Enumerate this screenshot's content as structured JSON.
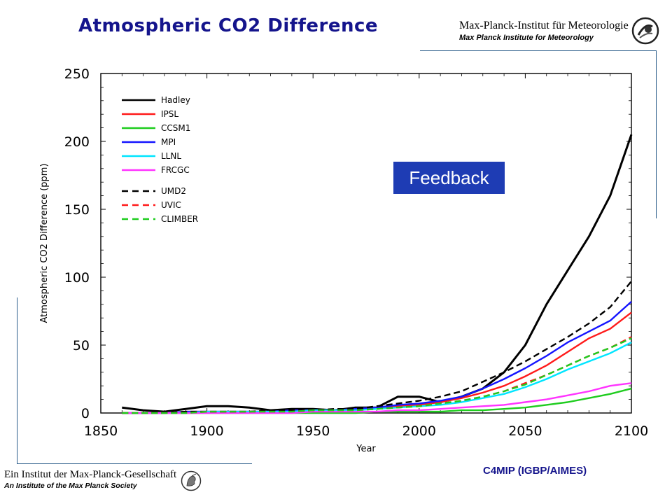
{
  "slide": {
    "title": "Atmospheric CO2 Difference",
    "institute_name": "Max-Planck-Institut für Meteorologie",
    "institute_name_en": "Max Planck Institute for Meteorology",
    "footer_society": "Ein Institut der Max-Planck-Gesellschaft",
    "footer_society_en": "An Institute of the Max Planck Society",
    "footer_project": "C4MIP (IGBP/AIMES)",
    "badge": "Feedback",
    "colors": {
      "title": "#14148c",
      "badge_bg": "#1e3cb4",
      "frame": "#2b5d8a"
    }
  },
  "chart_data": {
    "type": "line",
    "title": "",
    "xlabel": "Year",
    "ylabel": "Atmospheric CO2 Difference (ppm)",
    "xlim": [
      1850,
      2100
    ],
    "ylim": [
      0,
      250
    ],
    "xticks": [
      1850,
      1900,
      1950,
      2000,
      2050,
      2100
    ],
    "yticks": [
      0,
      50,
      100,
      150,
      200,
      250
    ],
    "grid": false,
    "legend_position": "top-left",
    "x": [
      1860,
      1870,
      1880,
      1890,
      1900,
      1910,
      1920,
      1930,
      1940,
      1950,
      1960,
      1970,
      1980,
      1990,
      2000,
      2010,
      2020,
      2030,
      2040,
      2050,
      2060,
      2070,
      2080,
      2090,
      2100
    ],
    "series": [
      {
        "name": "Hadley",
        "color": "#000000",
        "dash": "solid",
        "values": [
          4,
          2,
          1,
          3,
          5,
          5,
          4,
          2,
          3,
          3,
          2,
          4,
          4,
          12,
          12,
          8,
          12,
          18,
          30,
          50,
          80,
          105,
          130,
          160,
          205
        ]
      },
      {
        "name": "IPSL",
        "color": "#ff1a1a",
        "dash": "solid",
        "values": [
          0,
          0,
          0,
          1,
          1,
          1,
          1,
          1,
          2,
          2,
          2,
          3,
          4,
          5,
          6,
          8,
          11,
          15,
          20,
          27,
          35,
          45,
          55,
          62,
          74
        ]
      },
      {
        "name": "CCSM1",
        "color": "#1ecc1e",
        "dash": "solid",
        "values": [
          0,
          0,
          0,
          0,
          0,
          0,
          0,
          0,
          0,
          0,
          0,
          0,
          1,
          1,
          1,
          1,
          2,
          2,
          3,
          4,
          6,
          8,
          11,
          14,
          18
        ]
      },
      {
        "name": "MPI",
        "color": "#1414ff",
        "dash": "solid",
        "values": [
          0,
          0,
          0,
          1,
          1,
          1,
          1,
          1,
          2,
          2,
          2,
          3,
          4,
          6,
          7,
          9,
          12,
          18,
          25,
          33,
          42,
          52,
          60,
          68,
          82
        ]
      },
      {
        "name": "LLNL",
        "color": "#00e5ff",
        "dash": "solid",
        "values": [
          0,
          0,
          0,
          0,
          1,
          1,
          1,
          1,
          1,
          2,
          2,
          2,
          3,
          4,
          5,
          6,
          8,
          11,
          14,
          19,
          25,
          32,
          38,
          44,
          52
        ]
      },
      {
        "name": "FRCGC",
        "color": "#ff33ff",
        "dash": "solid",
        "values": [
          0,
          0,
          0,
          0,
          0,
          0,
          0,
          0,
          0,
          1,
          1,
          1,
          1,
          2,
          2,
          3,
          4,
          5,
          6,
          8,
          10,
          13,
          16,
          20,
          22
        ]
      },
      {
        "name": "UMD2",
        "color": "#000000",
        "dash": "dashed",
        "values": [
          0,
          0,
          0,
          1,
          1,
          1,
          1,
          2,
          2,
          2,
          3,
          3,
          5,
          7,
          9,
          12,
          16,
          23,
          30,
          38,
          47,
          56,
          66,
          78,
          97
        ]
      },
      {
        "name": "UVIC",
        "color": "#ff1a1a",
        "dash": "dashed",
        "values": [
          0,
          0,
          0,
          0,
          1,
          1,
          1,
          1,
          1,
          2,
          2,
          2,
          3,
          4,
          5,
          7,
          9,
          12,
          16,
          22,
          28,
          35,
          42,
          48,
          56
        ]
      },
      {
        "name": "CLIMBER",
        "color": "#1ecc1e",
        "dash": "dashed",
        "values": [
          0,
          0,
          0,
          0,
          1,
          1,
          1,
          1,
          1,
          2,
          2,
          2,
          3,
          4,
          5,
          7,
          9,
          12,
          16,
          21,
          28,
          35,
          42,
          48,
          55
        ]
      }
    ]
  }
}
